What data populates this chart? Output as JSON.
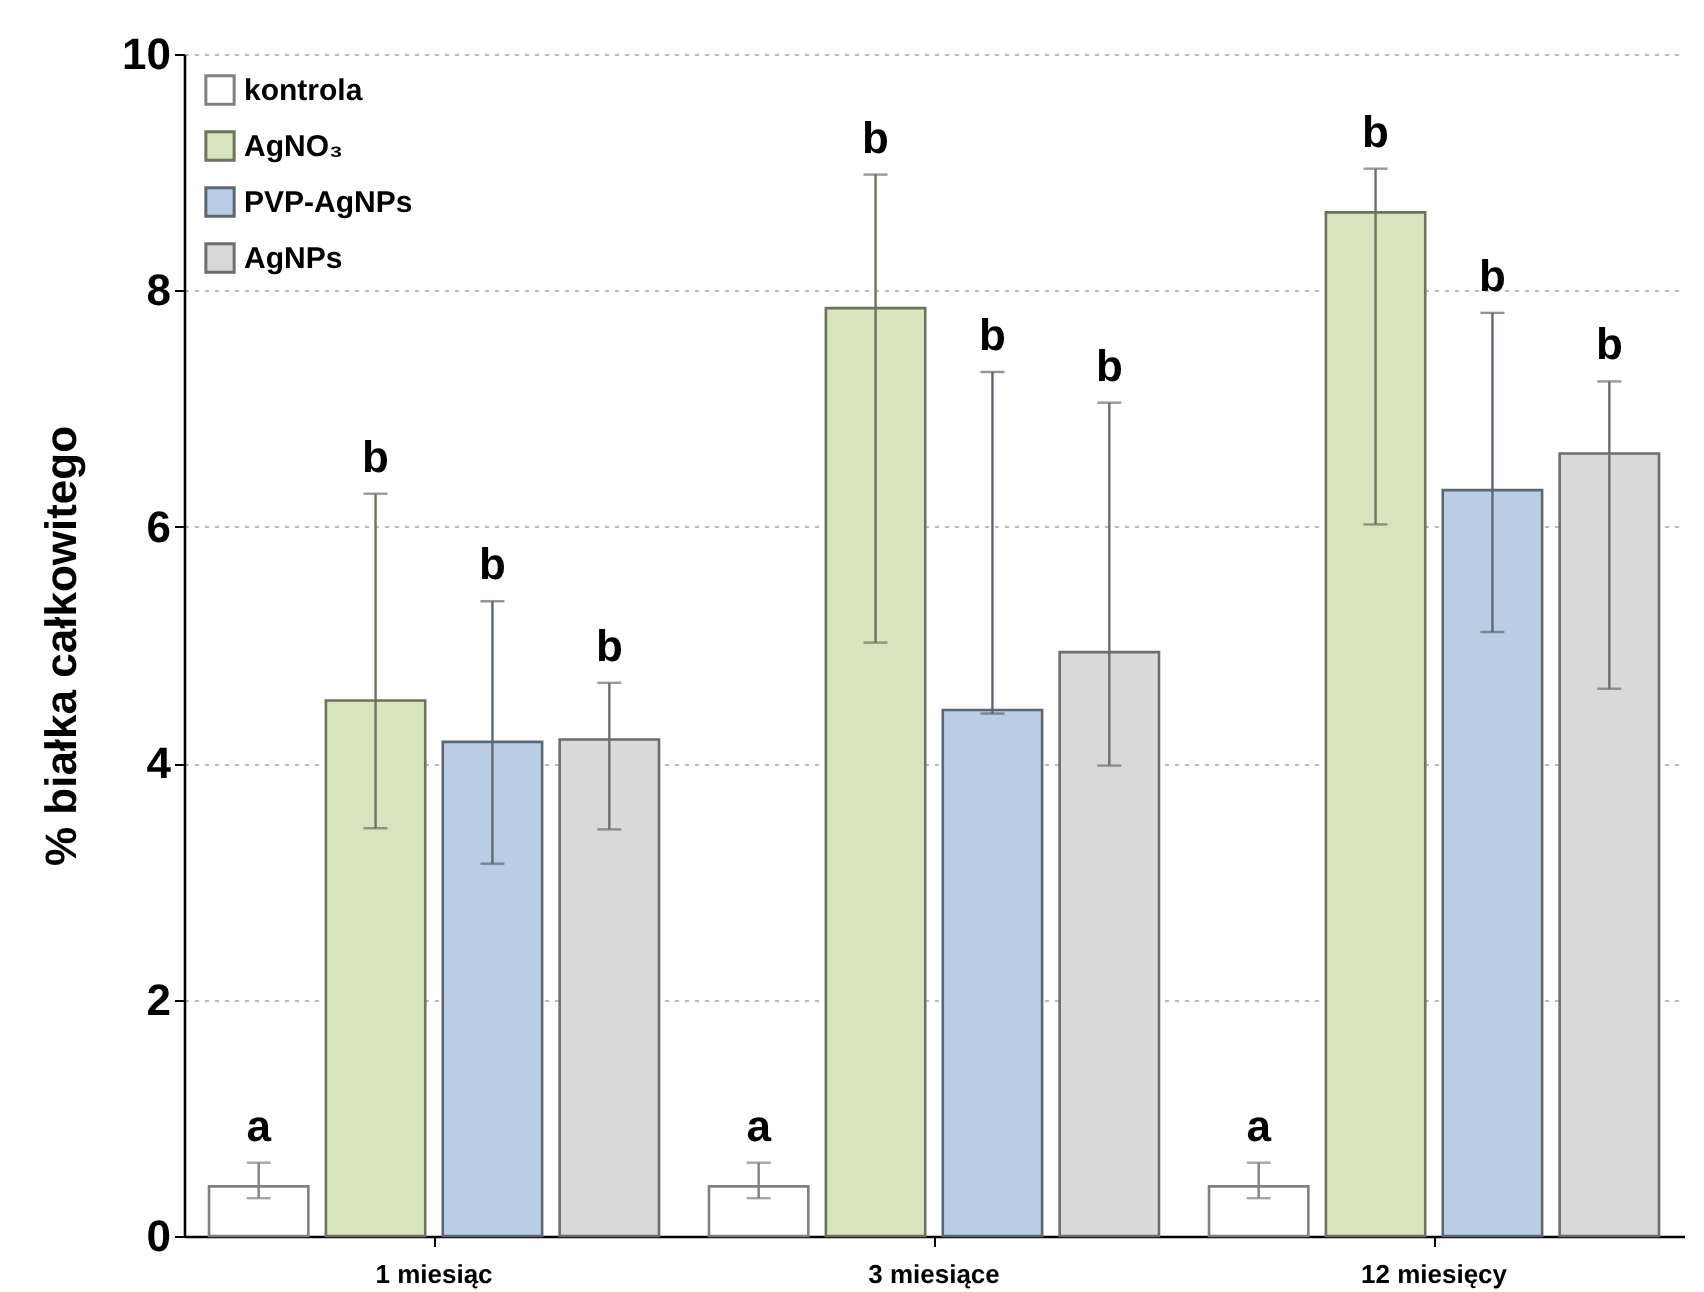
{
  "chart_data": {
    "type": "bar",
    "ylabel": "% białka całkowitego",
    "categories": [
      "1 miesiąc",
      "3 miesiące",
      "12 miesięcy"
    ],
    "series": [
      {
        "name": "kontrola",
        "color": "#ffffff",
        "values": [
          0.42,
          0.42,
          0.42
        ],
        "errors": [
          [
            0.32,
            0.62
          ],
          [
            0.32,
            0.62
          ],
          [
            0.32,
            0.62
          ]
        ]
      },
      {
        "name": "AgNO₃",
        "color": "#d7e4bd",
        "values": [
          4.53,
          7.85,
          8.66
        ],
        "errors": [
          [
            3.45,
            6.28
          ],
          [
            5.02,
            8.98
          ],
          [
            6.02,
            9.03
          ]
        ]
      },
      {
        "name": "PVP-AgNPs",
        "color": "#b9cde5",
        "values": [
          4.18,
          4.45,
          6.31
        ],
        "errors": [
          [
            3.15,
            5.37
          ],
          [
            4.42,
            7.31
          ],
          [
            5.11,
            7.81
          ]
        ]
      },
      {
        "name": "AgNPs",
        "color": "#d9d9d9",
        "values": [
          4.2,
          4.94,
          6.62
        ],
        "errors": [
          [
            3.44,
            4.68
          ],
          [
            3.98,
            7.05
          ],
          [
            4.63,
            7.23
          ]
        ]
      }
    ],
    "ylim": [
      0,
      10
    ],
    "yticks": [
      0,
      2,
      4,
      6,
      8,
      10
    ],
    "grid": "y",
    "legend": "top left",
    "annotations": [
      "a",
      "b",
      "b",
      "b",
      "a",
      "b",
      "b",
      "b",
      "a",
      "b",
      "b",
      "b"
    ]
  }
}
